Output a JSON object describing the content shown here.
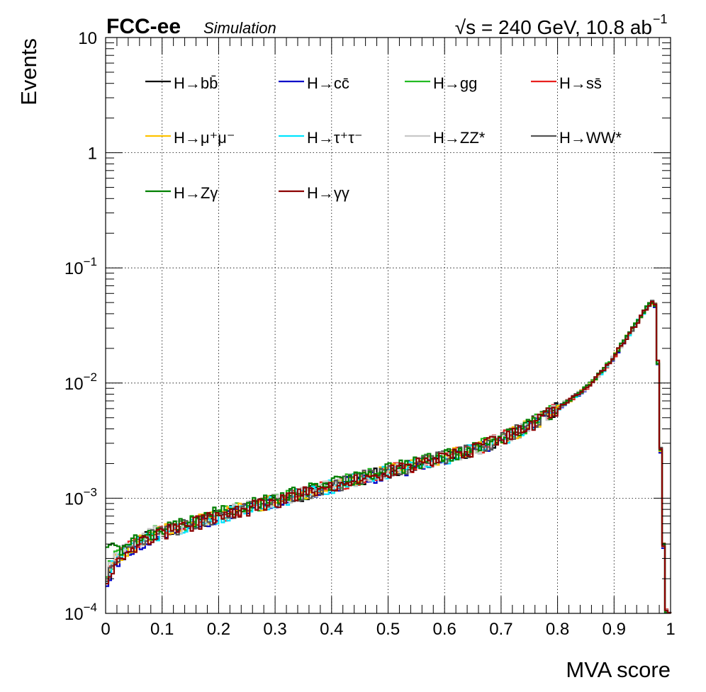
{
  "header": {
    "experiment": "FCC-ee",
    "status": "Simulation",
    "energy_text": "√s = 240 GeV, 10.8 ab",
    "energy_sup": "−1"
  },
  "chart_data": {
    "type": "line",
    "style": "step-histogram",
    "xlabel": "MVA score",
    "ylabel": "Events",
    "xlim": [
      0,
      1
    ],
    "ylim": [
      0.0001,
      10
    ],
    "yscale": "log",
    "grid": true,
    "legend_position": "top, inside plot, 4 columns",
    "x_ticks": [
      "0",
      "0.1",
      "0.2",
      "0.3",
      "0.4",
      "0.5",
      "0.6",
      "0.7",
      "0.8",
      "0.9",
      "1"
    ],
    "y_ticks": [
      {
        "base": "10",
        "exp": "−4"
      },
      {
        "base": "10",
        "exp": "−3"
      },
      {
        "base": "10",
        "exp": "−2"
      },
      {
        "base": "10",
        "exp": "−1"
      },
      {
        "base": "1",
        "exp": ""
      },
      {
        "base": "10",
        "exp": ""
      }
    ],
    "x": [
      0.0,
      0.02,
      0.04,
      0.06,
      0.08,
      0.1,
      0.15,
      0.2,
      0.25,
      0.3,
      0.35,
      0.4,
      0.45,
      0.5,
      0.55,
      0.6,
      0.65,
      0.7,
      0.75,
      0.8,
      0.85,
      0.88,
      0.9,
      0.92,
      0.94,
      0.955,
      0.965,
      0.97,
      0.975,
      0.98,
      0.985,
      0.99,
      0.995
    ],
    "series": [
      {
        "name": "H→bb̄",
        "color": "#000000",
        "values": [
          0.00021,
          0.0003,
          0.00036,
          0.00042,
          0.00047,
          0.00051,
          0.0006,
          0.00071,
          0.00082,
          0.00095,
          0.0011,
          0.00128,
          0.0015,
          0.00172,
          0.00198,
          0.00228,
          0.00265,
          0.0033,
          0.0043,
          0.006,
          0.009,
          0.0128,
          0.017,
          0.024,
          0.033,
          0.043,
          0.05,
          0.05,
          0.045,
          0.005,
          0.0014,
          0.00011,
          0.0001
        ]
      },
      {
        "name": "H→cc̄",
        "color": "#0000c8",
        "values": [
          0.00019,
          0.00028,
          0.00035,
          0.00041,
          0.00046,
          0.0005,
          0.00059,
          0.00069,
          0.0008,
          0.00093,
          0.00108,
          0.00125,
          0.00146,
          0.00168,
          0.00192,
          0.00222,
          0.00258,
          0.00325,
          0.00425,
          0.00595,
          0.0089,
          0.0126,
          0.0168,
          0.0238,
          0.0328,
          0.0428,
          0.0498,
          0.0497,
          0.0448,
          0.0049,
          0.0013,
          0.00011,
          0.0001
        ]
      },
      {
        "name": "H→gg",
        "color": "#22bb22",
        "values": [
          0.00023,
          0.00032,
          0.00038,
          0.00044,
          0.00049,
          0.00053,
          0.00062,
          0.00073,
          0.00084,
          0.00097,
          0.00113,
          0.00131,
          0.00152,
          0.00175,
          0.00201,
          0.00232,
          0.0027,
          0.00335,
          0.00435,
          0.00605,
          0.0091,
          0.0129,
          0.0172,
          0.0242,
          0.0332,
          0.0432,
          0.0502,
          0.0501,
          0.0451,
          0.0051,
          0.0014,
          0.00011,
          0.0001
        ]
      },
      {
        "name": "H→ss̄",
        "color": "#e8201e",
        "values": [
          0.00022,
          0.00031,
          0.00037,
          0.00043,
          0.00047,
          0.00051,
          0.00061,
          0.0007,
          0.00081,
          0.00096,
          0.00111,
          0.00127,
          0.00149,
          0.00171,
          0.00197,
          0.00227,
          0.00263,
          0.00328,
          0.00428,
          0.00598,
          0.00895,
          0.0127,
          0.0169,
          0.0239,
          0.0329,
          0.0429,
          0.0499,
          0.0499,
          0.0449,
          0.005,
          0.0014,
          0.00011,
          0.0001
        ]
      },
      {
        "name": "H→μ⁺μ⁻",
        "color": "#ffc200",
        "values": [
          0.00022,
          0.0003,
          0.00036,
          0.00043,
          0.00048,
          0.00052,
          0.0006,
          0.00071,
          0.00082,
          0.00095,
          0.0011,
          0.0013,
          0.0015,
          0.00172,
          0.00198,
          0.00228,
          0.00265,
          0.0033,
          0.0043,
          0.006,
          0.009,
          0.0128,
          0.017,
          0.024,
          0.033,
          0.043,
          0.05,
          0.05,
          0.045,
          0.005,
          0.0014,
          0.00011,
          0.0001
        ]
      },
      {
        "name": "H→τ⁺τ⁻",
        "color": "#00e5ff",
        "values": [
          0.00021,
          0.00029,
          0.00036,
          0.00042,
          0.00046,
          0.0005,
          0.00059,
          0.0007,
          0.00081,
          0.00094,
          0.00109,
          0.00127,
          0.00148,
          0.0017,
          0.00196,
          0.00226,
          0.00262,
          0.00327,
          0.00427,
          0.00597,
          0.00895,
          0.0127,
          0.0169,
          0.0239,
          0.0329,
          0.0429,
          0.0499,
          0.0499,
          0.0449,
          0.005,
          0.0014,
          0.00011,
          0.0001
        ]
      },
      {
        "name": "H→ZZ*",
        "color": "#c8c8c8",
        "values": [
          0.00022,
          0.00031,
          0.00038,
          0.00044,
          0.00049,
          0.00052,
          0.00061,
          0.00072,
          0.00083,
          0.00096,
          0.00111,
          0.00129,
          0.00151,
          0.00173,
          0.00199,
          0.00229,
          0.00266,
          0.00331,
          0.00431,
          0.00601,
          0.00902,
          0.0128,
          0.017,
          0.024,
          0.0331,
          0.0431,
          0.0501,
          0.05,
          0.045,
          0.005,
          0.0014,
          0.00011,
          0.0001
        ]
      },
      {
        "name": "H→WW*",
        "color": "#555555",
        "values": [
          0.00021,
          0.0003,
          0.00037,
          0.00043,
          0.00047,
          0.00051,
          0.0006,
          0.00071,
          0.00082,
          0.00095,
          0.0011,
          0.00128,
          0.0015,
          0.00172,
          0.00198,
          0.00228,
          0.00265,
          0.0033,
          0.0043,
          0.006,
          0.009,
          0.0128,
          0.017,
          0.024,
          0.033,
          0.043,
          0.05,
          0.05,
          0.045,
          0.005,
          0.0014,
          0.00011,
          0.0001
        ]
      },
      {
        "name": "H→Zγ",
        "color": "#007f00",
        "values": [
          0.00045,
          0.00034,
          0.0004,
          0.00046,
          0.0005,
          0.00054,
          0.00064,
          0.00075,
          0.00087,
          0.001,
          0.00116,
          0.00133,
          0.00154,
          0.00177,
          0.00203,
          0.00234,
          0.00272,
          0.00337,
          0.00437,
          0.00607,
          0.00912,
          0.0129,
          0.0172,
          0.0242,
          0.0332,
          0.0432,
          0.0502,
          0.0501,
          0.0451,
          0.0051,
          0.0014,
          0.00011,
          0.0001
        ]
      },
      {
        "name": "H→γγ",
        "color": "#8b0000",
        "values": [
          0.0002,
          0.00029,
          0.00036,
          0.00041,
          0.00046,
          0.0005,
          0.00059,
          0.0007,
          0.00081,
          0.00094,
          0.00109,
          0.00126,
          0.00148,
          0.0017,
          0.00196,
          0.00226,
          0.00263,
          0.00328,
          0.00428,
          0.00598,
          0.00898,
          0.0128,
          0.017,
          0.024,
          0.033,
          0.043,
          0.0505,
          0.0505,
          0.0452,
          0.0051,
          0.0014,
          0.00011,
          0.0001
        ]
      }
    ]
  }
}
